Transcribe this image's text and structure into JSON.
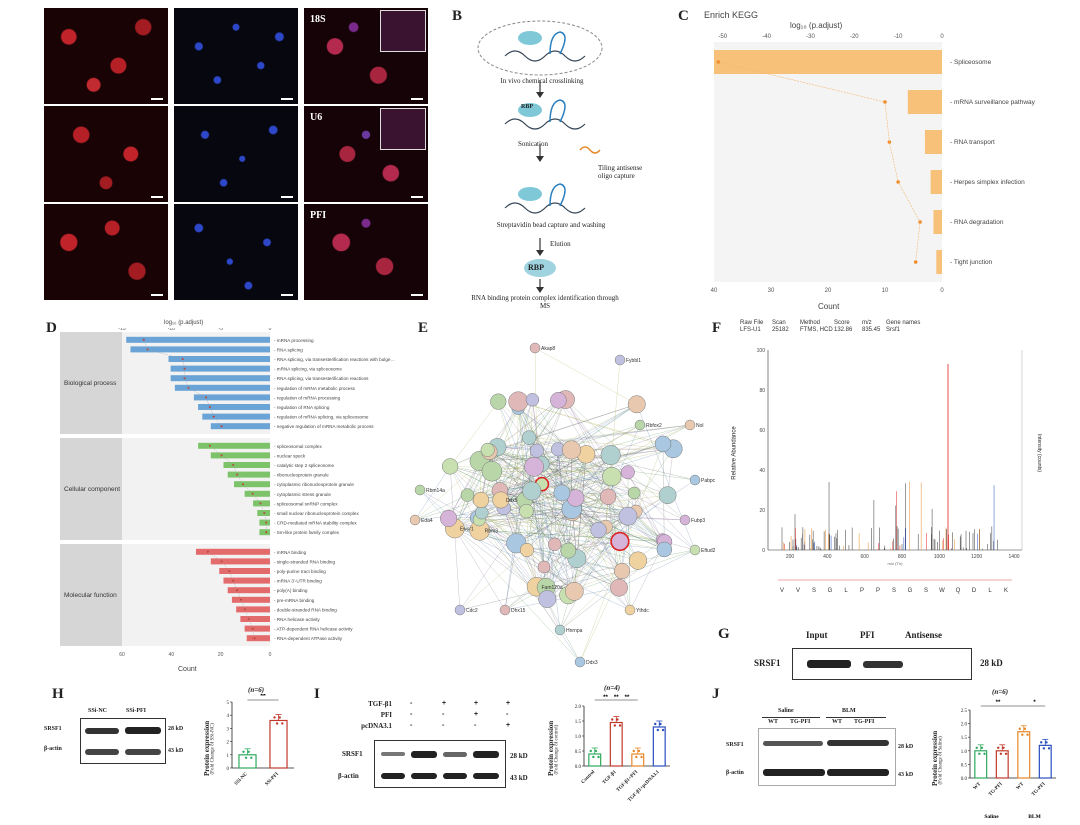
{
  "panels": {
    "A": {
      "letter": "A",
      "tags": [
        "18S",
        "U6",
        "PFI"
      ]
    },
    "B": {
      "letter": "B",
      "rbp": "RBP",
      "steps": [
        "In vivo chemical crosslinking",
        "Sonication",
        "Streptavidin bead capture and washing",
        "Elution"
      ],
      "side_note": "Tiling antisense oligo capture",
      "final": "RNA binding protein complex identification through MS"
    },
    "C": {
      "letter": "C",
      "title": "Enrich KEGG",
      "top_axis_label": "log₁₀ (p.adjust)",
      "top_ticks": [
        "-50",
        "-40",
        "-30",
        "-20",
        "-10",
        "0"
      ],
      "bottom_ticks": [
        "40",
        "30",
        "20",
        "10",
        "0"
      ],
      "xlabel": "Count"
    },
    "D": {
      "letter": "D",
      "top_axis_label": "log₁₀ (p.adjust)",
      "top_ticks": [
        "-15",
        "-10",
        "-5",
        "0"
      ],
      "bottom_ticks": [
        "60",
        "40",
        "20",
        "0"
      ],
      "xlabel": "Count",
      "groups": [
        {
          "name": "Biological process",
          "color": "#6aa3d5"
        },
        {
          "name": "Cellular component",
          "color": "#7cc36a"
        },
        {
          "name": "Molecular function",
          "color": "#e36b6b"
        }
      ]
    },
    "E": {
      "letter": "E",
      "node_labels": [
        "Akap8",
        "Fybbl1",
        "Rbfox2",
        "Nol",
        "Pabpc",
        "Fubp3",
        "Eftud2",
        "Ythdc",
        "Hnrnpa",
        "Dhx15",
        "Cdc2",
        "Rbm14a",
        "Eda4",
        "Ddx3",
        "Fam120a",
        "Rbm3",
        "Ddx5",
        "Ewsr1"
      ]
    },
    "F": {
      "letter": "F",
      "meta_headers": [
        "Raw File",
        "Scan",
        "Method",
        "Score",
        "m/z",
        "Gene names"
      ],
      "meta_values": [
        "LFS-U1",
        "25182",
        "FTMS, HCD",
        "132.86",
        "835.45",
        "Srsf1"
      ],
      "ylabel": "Relative Abundance",
      "y2label": "Intensity (counts)",
      "yticks": [
        "100",
        "80",
        "60",
        "40",
        "20",
        "0"
      ],
      "xticks": [
        "200",
        "400",
        "600",
        "800",
        "1000",
        "1200",
        "1400"
      ],
      "xlabel": "m/z (Th)",
      "sequence": [
        "V",
        "V",
        "S",
        "G",
        "L",
        "P",
        "P",
        "S",
        "G",
        "S",
        "W",
        "Q",
        "D",
        "L",
        "K"
      ]
    },
    "G": {
      "letter": "G",
      "lanes": [
        "Input",
        "PFI",
        "Antisense"
      ],
      "protein": "SRSF1",
      "size": "28 kD"
    },
    "H": {
      "letter": "H",
      "lanes": [
        "SSi-NC",
        "SSi-PFI"
      ],
      "rows": [
        "SRSF1",
        "β-actin"
      ],
      "sizes": [
        "28 kD",
        "43 kD"
      ],
      "n_label": "(n=6)",
      "sig": "**",
      "ylabel": "Protein expression",
      "ysub": "(Fold Change of SSi-NC)",
      "yticks": [
        "0",
        "1",
        "2",
        "3",
        "4",
        "5"
      ]
    },
    "I": {
      "letter": "I",
      "conditions": [
        "TGF-β1",
        "PFI",
        "pcDNA3.1"
      ],
      "signs": [
        [
          "-",
          "+",
          "+",
          "+"
        ],
        [
          "-",
          "-",
          "+",
          "-"
        ],
        [
          "-",
          "-",
          "-",
          "+"
        ]
      ],
      "rows": [
        "SRSF1",
        "β-actin"
      ],
      "sizes": [
        "28 kD",
        "43 kD"
      ],
      "n_label": "(n=4)",
      "sig": [
        "**",
        "**",
        "**"
      ],
      "ylabel": "Protein expression",
      "ysub": "(Fold Change of control)",
      "yticks": [
        "0.0",
        "0.5",
        "1.0",
        "1.5",
        "2.0"
      ]
    },
    "J": {
      "letter": "J",
      "groups": [
        "Saline",
        "BLM"
      ],
      "lanes": [
        "WT",
        "TG-PFI",
        "WT",
        "TG-PFI"
      ],
      "rows": [
        "SRSF1",
        "β-actin"
      ],
      "sizes": [
        "28 kD",
        "43 kD"
      ],
      "n_label": "(n=6)",
      "sig": [
        "**",
        "*"
      ],
      "ylabel": "Protein expression",
      "ysub": "(Fold Change of Saline)",
      "yticks": [
        "0.0",
        "0.5",
        "1.0",
        "1.5",
        "2.0",
        "2.5"
      ]
    }
  },
  "chart_data": [
    {
      "panel": "C",
      "type": "bar",
      "title": "Enrich KEGG",
      "categories": [
        "Spliceosome",
        "mRNA surveillance pathway",
        "RNA transport",
        "Herpes simplex infection",
        "RNA degradation",
        "Tight junction"
      ],
      "series": [
        {
          "name": "Count",
          "values": [
            40,
            6,
            3,
            2,
            1.5,
            1
          ]
        },
        {
          "name": "log10 (p.adjust)",
          "values": [
            -51,
            -13,
            -12,
            -10,
            -5,
            -6
          ]
        }
      ],
      "xlabel": "Count"
    },
    {
      "panel": "D",
      "type": "bar",
      "groups": [
        {
          "name": "Biological process",
          "categories": [
            "mRNA processing",
            "RNA splicing",
            "RNA splicing, via transesterification reactions with bulged adenosine as nucleophile",
            "mRNA splicing, via spliceosome",
            "RNA splicing, via transesterification reactions",
            "regulation of mRNA metabolic process",
            "regulation of mRNA processing",
            "regulation of RNA splicing",
            "regulation of mRNA splicing, via spliceosome",
            "negative regulation of mRNA metabolic process"
          ],
          "values": [
            68,
            66,
            48,
            47,
            47,
            45,
            36,
            34,
            32,
            28
          ]
        },
        {
          "name": "Cellular component",
          "categories": [
            "spliceosomal complex",
            "nuclear speck",
            "catalytic step 2 spliceosome",
            "ribonucleoprotein granule",
            "cytoplasmic ribonucleoprotein granule",
            "cytoplasmic stress granule",
            "spliceosomal snRNP complex",
            "small nuclear ribonucleoprotein complex",
            "CRD-mediated mRNA stability complex",
            "Sm-like protein family complex"
          ],
          "values": [
            34,
            28,
            22,
            20,
            17,
            12,
            8,
            6,
            5,
            5
          ]
        },
        {
          "name": "Molecular function",
          "categories": [
            "mRNA binding",
            "single-stranded RNA binding",
            "poly-purine tract binding",
            "mRNA 3'-UTR binding",
            "poly(A) binding",
            "pre-mRNA binding",
            "double-stranded RNA binding",
            "RNA helicase activity",
            "ATP-dependent RNA helicase activity",
            "RNA-dependent ATPase activity"
          ],
          "values": [
            35,
            28,
            24,
            22,
            20,
            18,
            16,
            14,
            12,
            11
          ]
        }
      ],
      "xlabel": "Count"
    },
    {
      "panel": "H",
      "type": "bar",
      "categories": [
        "SSi-NC",
        "SSi-PFI"
      ],
      "values": [
        1.0,
        3.6
      ],
      "ylim": [
        0,
        5
      ],
      "ylabel": "Protein expression"
    },
    {
      "panel": "I",
      "type": "bar",
      "categories": [
        "Control",
        "TGF-β1",
        "TGF-β1+PFI",
        "TGF-β1+pcDNA3.1"
      ],
      "values": [
        0.4,
        1.45,
        0.4,
        1.3
      ],
      "ylim": [
        0,
        2
      ],
      "ylabel": "Protein expression"
    },
    {
      "panel": "J",
      "type": "bar",
      "categories": [
        "Saline WT",
        "Saline TG-PFI",
        "BLM WT",
        "BLM TG-PFI"
      ],
      "values": [
        1.0,
        1.0,
        1.7,
        1.2
      ],
      "ylim": [
        0,
        2.5
      ],
      "ylabel": "Protein expression"
    }
  ]
}
